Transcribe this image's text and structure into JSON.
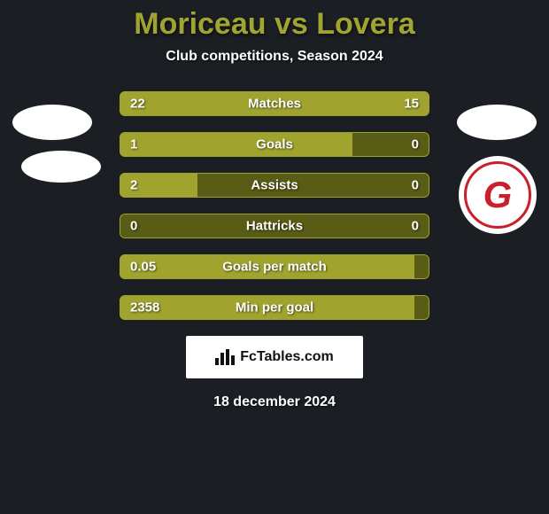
{
  "title": {
    "text": "Moriceau vs Lovera",
    "color": "#a0a431",
    "fontsize": 34
  },
  "subtitle": {
    "text": "Club competitions, Season 2024",
    "color": "#ffffff",
    "fontsize": 16
  },
  "bar_track_color": "#585c14",
  "bar_fill_color": "#a0a42f",
  "value_fontsize": 15,
  "label_fontsize": 15,
  "rows": [
    {
      "label": "Matches",
      "left": "22",
      "right": "15",
      "left_pct": 59,
      "right_pct": 41
    },
    {
      "label": "Goals",
      "left": "1",
      "right": "0",
      "left_pct": 75,
      "right_pct": 0
    },
    {
      "label": "Assists",
      "left": "2",
      "right": "0",
      "left_pct": 25,
      "right_pct": 0
    },
    {
      "label": "Hattricks",
      "left": "0",
      "right": "0",
      "left_pct": 0,
      "right_pct": 0
    },
    {
      "label": "Goals per match",
      "left": "0.05",
      "right": "",
      "left_pct": 95,
      "right_pct": 0
    },
    {
      "label": "Min per goal",
      "left": "2358",
      "right": "",
      "left_pct": 95,
      "right_pct": 0
    }
  ],
  "fctables": {
    "label": "FcTables.com",
    "fontsize": 16
  },
  "date": {
    "text": "18 december 2024",
    "fontsize": 16
  },
  "right_club_letter": "G"
}
